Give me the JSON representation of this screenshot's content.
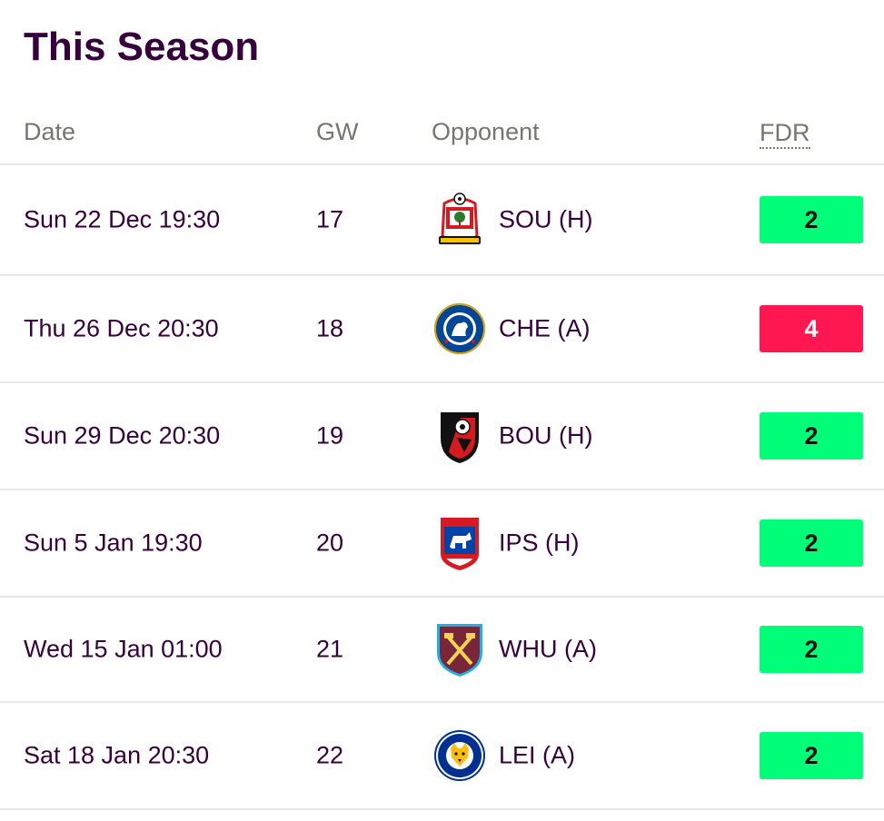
{
  "title": "This Season",
  "headers": {
    "date": "Date",
    "gw": "GW",
    "opponent": "Opponent",
    "fdr": "FDR"
  },
  "colors": {
    "fdr2_bg": "#00ff78",
    "fdr2_fg": "#111111",
    "fdr4_bg": "#ff1751",
    "fdr4_fg": "#ffffff",
    "text": "#37003c"
  },
  "fixtures": [
    {
      "date": "Sun 22 Dec 19:30",
      "gw": "17",
      "opponent": "SOU (H)",
      "badge": "southampton-badge-icon",
      "fdr": "2"
    },
    {
      "date": "Thu 26 Dec 20:30",
      "gw": "18",
      "opponent": "CHE (A)",
      "badge": "chelsea-badge-icon",
      "fdr": "4"
    },
    {
      "date": "Sun 29 Dec 20:30",
      "gw": "19",
      "opponent": "BOU (H)",
      "badge": "bournemouth-badge-icon",
      "fdr": "2"
    },
    {
      "date": "Sun 5 Jan 19:30",
      "gw": "20",
      "opponent": "IPS (H)",
      "badge": "ipswich-badge-icon",
      "fdr": "2"
    },
    {
      "date": "Wed 15 Jan 01:00",
      "gw": "21",
      "opponent": "WHU (A)",
      "badge": "westham-badge-icon",
      "fdr": "2"
    },
    {
      "date": "Sat 18 Jan 20:30",
      "gw": "22",
      "opponent": "LEI (A)",
      "badge": "leicester-badge-icon",
      "fdr": "2"
    }
  ]
}
